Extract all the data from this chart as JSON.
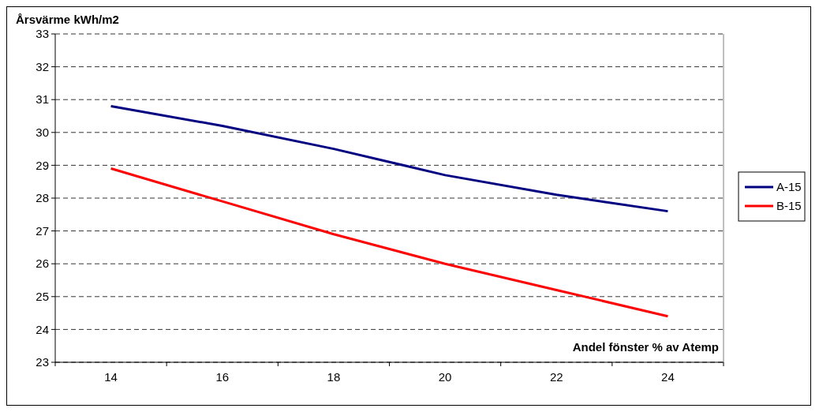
{
  "chart_data": {
    "type": "line",
    "ylabel": "Årsvärme kWh/m2",
    "xlabel": "Andel fönster % av Atemp",
    "categories": [
      "14",
      "16",
      "18",
      "20",
      "22",
      "24"
    ],
    "series": [
      {
        "name": "A-15",
        "color": "#000080",
        "values": [
          30.8,
          30.2,
          29.5,
          28.7,
          28.1,
          27.6
        ]
      },
      {
        "name": "B-15",
        "color": "#ff0000",
        "values": [
          28.9,
          27.9,
          26.9,
          26.0,
          25.2,
          24.4
        ]
      }
    ],
    "ylim": [
      23,
      33
    ],
    "yticks": [
      23,
      24,
      25,
      26,
      27,
      28,
      29,
      30,
      31,
      32,
      33
    ],
    "grid": "y",
    "legend": "right",
    "marker": "none",
    "line_style": "solid"
  }
}
